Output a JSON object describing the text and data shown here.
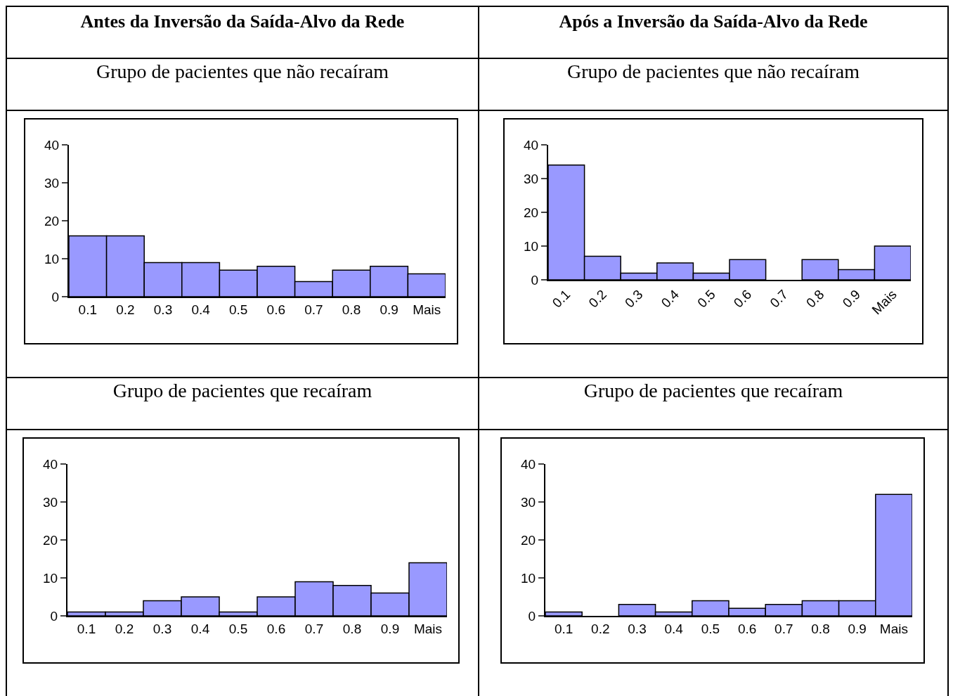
{
  "chart_data": [
    {
      "type": "bar",
      "title": "Antes da Inversão da Saída-Alvo da Rede",
      "subtitle": "Grupo de pacientes que não recaíram",
      "categories": [
        "0.1",
        "0.2",
        "0.3",
        "0.4",
        "0.5",
        "0.6",
        "0.7",
        "0.8",
        "0.9",
        "Mais"
      ],
      "values": [
        16,
        16,
        9,
        9,
        7,
        8,
        4,
        7,
        8,
        6
      ],
      "color": "#9999ff",
      "ylim": [
        0,
        40
      ],
      "yticks": [
        0,
        10,
        20,
        30,
        40
      ]
    },
    {
      "type": "bar",
      "title": "Após a Inversão da Saída-Alvo da Rede",
      "subtitle": "Grupo de pacientes que não recaíram",
      "categories": [
        "0.1",
        "0.2",
        "0.3",
        "0.4",
        "0.5",
        "0.6",
        "0.7",
        "0.8",
        "0.9",
        "Mais"
      ],
      "values": [
        34,
        7,
        2,
        5,
        2,
        6,
        0,
        6,
        3,
        10
      ],
      "color": "#9999ff",
      "ylim": [
        0,
        40
      ],
      "yticks": [
        0,
        10,
        20,
        30,
        40
      ]
    },
    {
      "type": "bar",
      "title": "Grupo de pacientes que recaíram",
      "categories": [
        "0.1",
        "0.2",
        "0.3",
        "0.4",
        "0.5",
        "0.6",
        "0.7",
        "0.8",
        "0.9",
        "Mais"
      ],
      "values": [
        1,
        1,
        4,
        5,
        1,
        5,
        9,
        8,
        6,
        14
      ],
      "color": "#9999ff",
      "ylim": [
        0,
        40
      ],
      "yticks": [
        0,
        10,
        20,
        30,
        40
      ]
    },
    {
      "type": "bar",
      "title": "Grupo de pacientes que recaíram",
      "categories": [
        "0.1",
        "0.2",
        "0.3",
        "0.4",
        "0.5",
        "0.6",
        "0.7",
        "0.8",
        "0.9",
        "Mais"
      ],
      "values": [
        1,
        0,
        3,
        1,
        4,
        2,
        3,
        4,
        4,
        32
      ],
      "color": "#9999ff",
      "ylim": [
        0,
        40
      ],
      "yticks": [
        0,
        10,
        20,
        30,
        40
      ]
    }
  ]
}
